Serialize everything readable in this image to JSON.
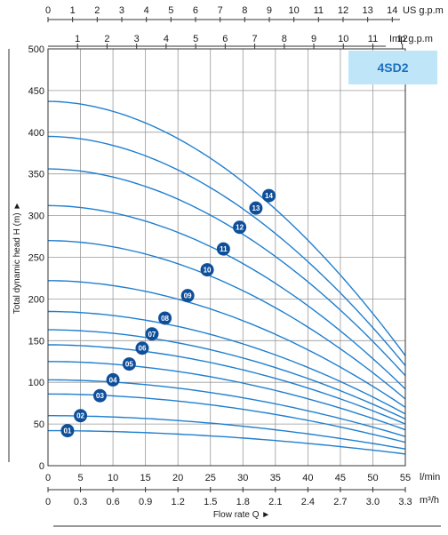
{
  "chart_data": {
    "type": "line",
    "model_label": "4SD2",
    "xlabel": "Flow rate Q ►",
    "ylabel": "Total dynamic head H (m) ►",
    "x_unit_lmin": "l/min",
    "x_unit_m3h": "m³/h",
    "top_unit_usgpm": "US g.p.m",
    "top_unit_impgpm": "Imp g.p.m",
    "xlim": [
      0,
      55
    ],
    "ylim": [
      0,
      500
    ],
    "grid": true,
    "x_ticks_lmin": [
      0,
      5,
      10,
      15,
      20,
      25,
      30,
      35,
      40,
      45,
      50,
      55
    ],
    "x_ticks_m3h": [
      "0",
      "0.3",
      "0.6",
      "0.9",
      "1.2",
      "1.5",
      "1.8",
      "2.1",
      "2.4",
      "2.7",
      "3.0",
      "3.3"
    ],
    "y_ticks": [
      0,
      50,
      100,
      150,
      200,
      250,
      300,
      350,
      400,
      450,
      500
    ],
    "usgpm_ticks": [
      0,
      1,
      2,
      3,
      4,
      5,
      6,
      7,
      8,
      9,
      10,
      11,
      12,
      13,
      14
    ],
    "impgpm_ticks": [
      1,
      2,
      3,
      4,
      5,
      6,
      7,
      8,
      9,
      10,
      11,
      12
    ],
    "series": [
      {
        "name": "01",
        "shutoff_head": 42,
        "end_head": 14,
        "label_at": [
          3,
          42
        ]
      },
      {
        "name": "02",
        "shutoff_head": 60,
        "end_head": 20,
        "label_at": [
          5,
          60
        ]
      },
      {
        "name": "03",
        "shutoff_head": 86,
        "end_head": 28,
        "label_at": [
          8,
          84
        ]
      },
      {
        "name": "04",
        "shutoff_head": 103,
        "end_head": 35,
        "label_at": [
          10,
          103
        ]
      },
      {
        "name": "05",
        "shutoff_head": 125,
        "end_head": 43,
        "label_at": [
          12.5,
          122
        ]
      },
      {
        "name": "06",
        "shutoff_head": 145,
        "end_head": 50,
        "label_at": [
          14.5,
          141
        ]
      },
      {
        "name": "07",
        "shutoff_head": 163,
        "end_head": 56,
        "label_at": [
          16,
          158
        ]
      },
      {
        "name": "08",
        "shutoff_head": 185,
        "end_head": 62,
        "label_at": [
          18,
          177
        ]
      },
      {
        "name": "09",
        "shutoff_head": 222,
        "end_head": 70,
        "label_at": [
          21.5,
          204
        ]
      },
      {
        "name": "10",
        "shutoff_head": 270,
        "end_head": 80,
        "label_at": [
          24.5,
          235
        ]
      },
      {
        "name": "11",
        "shutoff_head": 312,
        "end_head": 92,
        "label_at": [
          27,
          260
        ]
      },
      {
        "name": "12",
        "shutoff_head": 356,
        "end_head": 108,
        "label_at": [
          29.5,
          286
        ]
      },
      {
        "name": "13",
        "shutoff_head": 395,
        "end_head": 120,
        "label_at": [
          32,
          309
        ]
      },
      {
        "name": "14",
        "shutoff_head": 437,
        "end_head": 132,
        "label_at": [
          34,
          324
        ]
      }
    ],
    "line_color": "#1f7fd0",
    "badge_color": "#0f4f9a",
    "grid_color": "#9a9a9a",
    "model_box_color": "#bfe6f8"
  }
}
